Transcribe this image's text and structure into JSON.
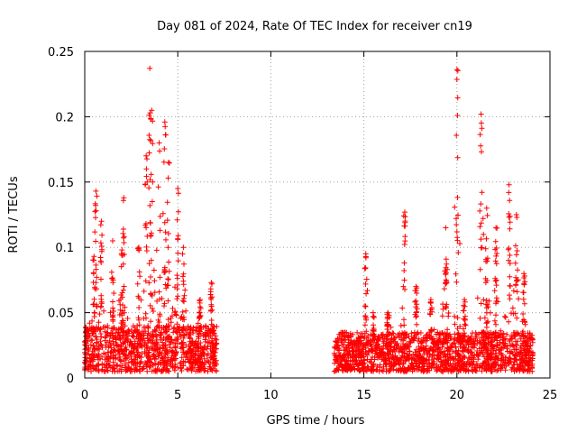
{
  "chart_data": {
    "type": "scatter",
    "title": "Day 081 of 2024, Rate Of TEC Index for receiver cn19",
    "xlabel": "GPS time / hours",
    "ylabel": "ROTI / TECUs",
    "xlim": [
      0,
      25
    ],
    "ylim": [
      0,
      0.25
    ],
    "xticks": [
      0,
      5,
      10,
      15,
      20,
      25
    ],
    "xtick_labels": [
      "0",
      "5",
      "10",
      "15",
      "20",
      "25"
    ],
    "yticks": [
      0,
      0.05,
      0.1,
      0.15,
      0.2,
      0.25
    ],
    "ytick_labels": [
      "0",
      "0.05",
      "0.1",
      "0.15",
      "0.2",
      "0.25"
    ],
    "grid": true,
    "marker": "+",
    "color": "#ff0000",
    "series": [
      {
        "name": "ROTI",
        "segments": [
          {
            "x_start": 0.0,
            "x_end": 7.1,
            "baseline": [
              0.005,
              0.04
            ]
          },
          {
            "x_start": 13.4,
            "x_end": 24.1,
            "baseline": [
              0.005,
              0.035
            ]
          }
        ],
        "peaks": [
          {
            "x": 0.5,
            "y": 0.093
          },
          {
            "x": 0.6,
            "y": 0.143
          },
          {
            "x": 0.9,
            "y": 0.12
          },
          {
            "x": 1.5,
            "y": 0.105
          },
          {
            "x": 2.0,
            "y": 0.098
          },
          {
            "x": 2.1,
            "y": 0.138
          },
          {
            "x": 2.9,
            "y": 0.1
          },
          {
            "x": 3.3,
            "y": 0.17
          },
          {
            "x": 3.5,
            "y": 0.237
          },
          {
            "x": 3.6,
            "y": 0.205
          },
          {
            "x": 4.0,
            "y": 0.18
          },
          {
            "x": 4.3,
            "y": 0.196
          },
          {
            "x": 4.5,
            "y": 0.165
          },
          {
            "x": 5.0,
            "y": 0.145
          },
          {
            "x": 5.3,
            "y": 0.1
          },
          {
            "x": 6.2,
            "y": 0.06
          },
          {
            "x": 6.8,
            "y": 0.073
          },
          {
            "x": 15.1,
            "y": 0.095
          },
          {
            "x": 15.5,
            "y": 0.05
          },
          {
            "x": 16.3,
            "y": 0.05
          },
          {
            "x": 17.2,
            "y": 0.127
          },
          {
            "x": 17.8,
            "y": 0.07
          },
          {
            "x": 18.6,
            "y": 0.06
          },
          {
            "x": 19.4,
            "y": 0.115
          },
          {
            "x": 20.0,
            "y": 0.236
          },
          {
            "x": 20.4,
            "y": 0.06
          },
          {
            "x": 21.3,
            "y": 0.202
          },
          {
            "x": 21.6,
            "y": 0.13
          },
          {
            "x": 22.1,
            "y": 0.115
          },
          {
            "x": 22.8,
            "y": 0.148
          },
          {
            "x": 23.2,
            "y": 0.125
          },
          {
            "x": 23.6,
            "y": 0.08
          }
        ]
      }
    ]
  }
}
